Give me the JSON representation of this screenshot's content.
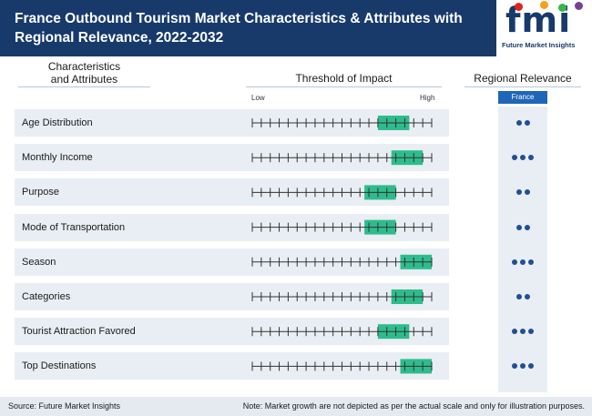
{
  "header": {
    "title": "France Outbound Tourism Market Characteristics & Attributes with Regional Relevance, 2022-2032",
    "logo_letters": "fmi",
    "logo_subtitle": "Future Market Insights",
    "logo_dot_colors": [
      "#e2231a",
      "#f7a11a",
      "#3ab54a",
      "#7b3f98"
    ]
  },
  "columns": {
    "characteristics_line1": "Characteristics",
    "characteristics_line2": "and Attributes",
    "threshold": "Threshold of Impact",
    "relevance": "Regional Relevance"
  },
  "scale": {
    "low": "Low",
    "high": "High"
  },
  "region": "France",
  "colors": {
    "bar": "#2ebc8c",
    "tick": "#333333",
    "dot": "#1f4f95",
    "band": "#e9eef4",
    "header": "#173a6b"
  },
  "chart_data": {
    "type": "table",
    "scale_ticks": 20,
    "rows": [
      {
        "label": "Age Distribution",
        "impact_start": 14,
        "impact_end": 17.5,
        "relevance": 2
      },
      {
        "label": "Monthly Income",
        "impact_start": 15.5,
        "impact_end": 19,
        "relevance": 3
      },
      {
        "label": "Purpose",
        "impact_start": 12.5,
        "impact_end": 16,
        "relevance": 2
      },
      {
        "label": "Mode of Transportation",
        "impact_start": 12.5,
        "impact_end": 16,
        "relevance": 2
      },
      {
        "label": "Season",
        "impact_start": 16.5,
        "impact_end": 20,
        "relevance": 3
      },
      {
        "label": "Categories",
        "impact_start": 15.5,
        "impact_end": 19,
        "relevance": 2
      },
      {
        "label": "Tourist Attraction Favored",
        "impact_start": 14,
        "impact_end": 17.5,
        "relevance": 3
      },
      {
        "label": "Top Destinations",
        "impact_start": 16.5,
        "impact_end": 20,
        "relevance": 3
      }
    ]
  },
  "footer": {
    "source": "Source: Future Market Insights",
    "note": "Note: Market growth are not depicted as per the actual scale and only for illustration purposes."
  }
}
